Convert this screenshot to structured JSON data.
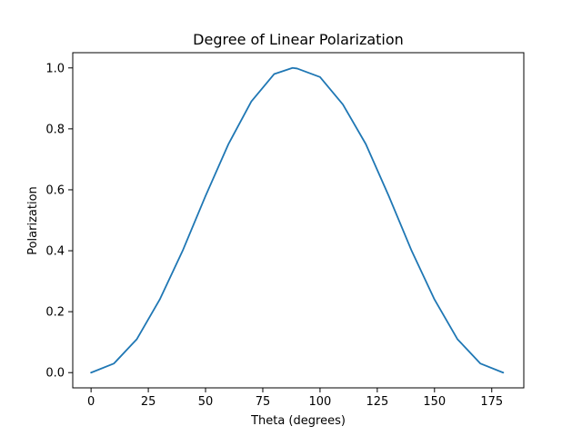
{
  "chart_data": {
    "type": "line",
    "title": "Degree of Linear Polarization",
    "xlabel": "Theta (degrees)",
    "ylabel": "Polarization",
    "xlim": [
      -8,
      189
    ],
    "ylim": [
      -0.05,
      1.05
    ],
    "xticks": [
      0,
      25,
      50,
      75,
      100,
      125,
      150,
      175
    ],
    "yticks": [
      0.0,
      0.2,
      0.4,
      0.6,
      0.8,
      1.0
    ],
    "xtick_labels": [
      "0",
      "25",
      "50",
      "75",
      "100",
      "125",
      "150",
      "175"
    ],
    "ytick_labels": [
      "0.0",
      "0.2",
      "0.4",
      "0.6",
      "0.8",
      "1.0"
    ],
    "grid": false,
    "series": [
      {
        "color": "#1f77b4",
        "x": [
          0,
          10,
          20,
          30,
          40,
          50,
          60,
          70,
          80,
          88,
          90,
          100,
          110,
          120,
          130,
          140,
          150,
          160,
          170,
          180
        ],
        "y": [
          0.0,
          0.03,
          0.11,
          0.24,
          0.4,
          0.58,
          0.75,
          0.89,
          0.98,
          1.0,
          0.998,
          0.97,
          0.88,
          0.75,
          0.58,
          0.4,
          0.24,
          0.11,
          0.03,
          0.0
        ]
      }
    ]
  }
}
